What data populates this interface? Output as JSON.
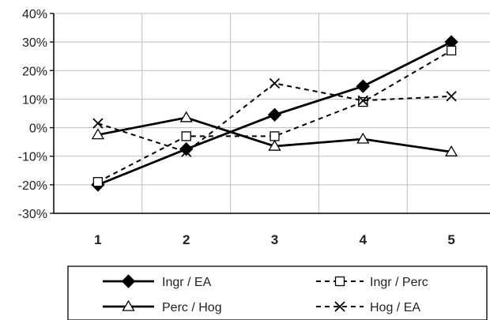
{
  "chart_data": {
    "type": "line",
    "categories": [
      "1",
      "2",
      "3",
      "4",
      "5"
    ],
    "ylim": [
      -30,
      40
    ],
    "yticks": [
      -30,
      -20,
      -10,
      0,
      10,
      20,
      30,
      40
    ],
    "ytick_labels": [
      "-30%",
      "-20%",
      "-10%",
      "0%",
      "10%",
      "20%",
      "30%",
      "40%"
    ],
    "grid": true,
    "legend_position": "bottom",
    "series": [
      {
        "name": "Ingr / EA",
        "values": [
          -20,
          -7.5,
          4.5,
          14.5,
          30
        ],
        "marker": "diamond",
        "line": "solid",
        "color": "#000000"
      },
      {
        "name": "Ingr / Perc",
        "values": [
          -19,
          -3,
          -3,
          9,
          27
        ],
        "marker": "square",
        "line": "dashed",
        "color": "#000000"
      },
      {
        "name": "Perc / Hog",
        "values": [
          -2.5,
          3.5,
          -6.5,
          -4,
          -8.5
        ],
        "marker": "triangle",
        "line": "solid",
        "color": "#000000"
      },
      {
        "name": "Hog / EA",
        "values": [
          1.5,
          -8.5,
          15.5,
          9.5,
          11
        ],
        "marker": "x",
        "line": "dashed",
        "color": "#000000"
      }
    ]
  }
}
